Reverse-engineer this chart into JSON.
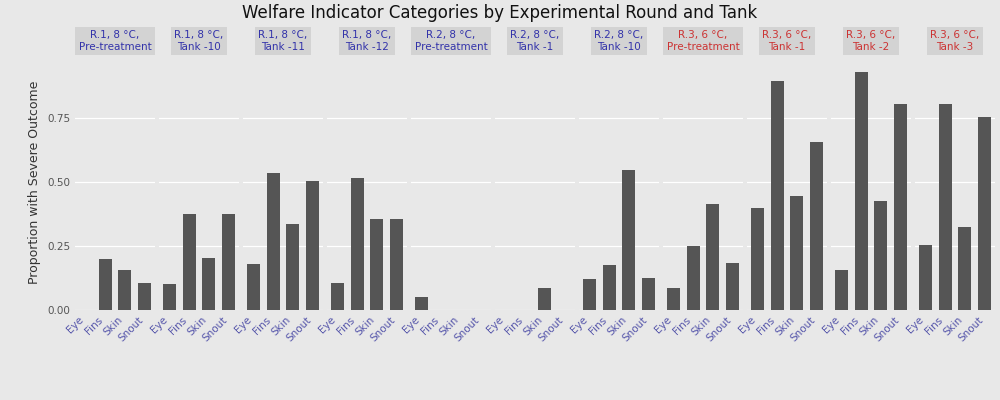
{
  "title": "Welfare Indicator Categories by Experimental Round and Tank",
  "ylabel": "Proportion with Severe Outcome",
  "bar_color": "#555555",
  "background_color": "#e8e8e8",
  "panel_background": "#e8e8e8",
  "facet_label_background": "#d3d3d3",
  "facets": [
    {
      "label": "R.1, 8 °C,\nPre-treatment",
      "label_color": "#3333aa",
      "values": [
        0.0,
        0.2,
        0.155,
        0.105
      ]
    },
    {
      "label": "R.1, 8 °C,\nTank -10",
      "label_color": "#3333aa",
      "values": [
        0.1,
        0.375,
        0.205,
        0.375
      ]
    },
    {
      "label": "R.1, 8 °C,\nTank -11",
      "label_color": "#3333aa",
      "values": [
        0.18,
        0.535,
        0.335,
        0.505
      ]
    },
    {
      "label": "R.1, 8 °C,\nTank -12",
      "label_color": "#3333aa",
      "values": [
        0.105,
        0.515,
        0.355,
        0.355
      ]
    },
    {
      "label": "R.2, 8 °C,\nPre-treatment",
      "label_color": "#3333aa",
      "values": [
        0.05,
        0.0,
        0.0,
        0.0
      ]
    },
    {
      "label": "R.2, 8 °C,\nTank -1",
      "label_color": "#3333aa",
      "values": [
        0.0,
        0.0,
        0.085,
        0.0
      ]
    },
    {
      "label": "R.2, 8 °C,\nTank -10",
      "label_color": "#3333aa",
      "values": [
        0.12,
        0.175,
        0.545,
        0.125
      ]
    },
    {
      "label": "R.3, 6 °C,\nPre-treatment",
      "label_color": "#cc3333",
      "values": [
        0.085,
        0.25,
        0.415,
        0.185
      ]
    },
    {
      "label": "R.3, 6 °C,\nTank -1",
      "label_color": "#cc3333",
      "values": [
        0.4,
        0.895,
        0.445,
        0.655
      ]
    },
    {
      "label": "R.3, 6 °C,\nTank -2",
      "label_color": "#cc3333",
      "values": [
        0.155,
        0.93,
        0.425,
        0.805
      ]
    },
    {
      "label": "R.3, 6 °C,\nTank -3",
      "label_color": "#cc3333",
      "values": [
        0.255,
        0.805,
        0.325,
        0.755
      ]
    }
  ],
  "categories": [
    "Eye",
    "Fins",
    "Skin",
    "Snout"
  ],
  "ylim": [
    0,
    1.0
  ],
  "yticks": [
    0.0,
    0.25,
    0.5,
    0.75
  ],
  "ytick_labels": [
    "0.00",
    "0.25",
    "0.50",
    "0.75"
  ],
  "title_fontsize": 12,
  "axis_label_fontsize": 9,
  "tick_fontsize": 7.5,
  "facet_label_fontsize": 7.5
}
